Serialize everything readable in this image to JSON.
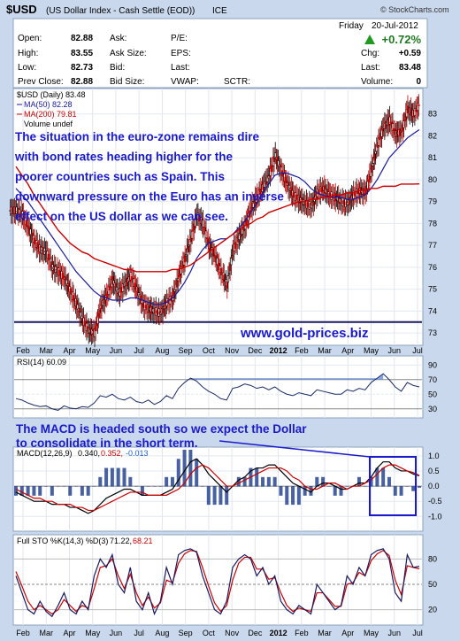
{
  "header": {
    "symbol": "$USD",
    "description": "(US Dollar Index - Cash Settle (EOD))",
    "exchange": "ICE",
    "brand": "© StockCharts.com",
    "day": "Friday",
    "date": "20-Jul-2012",
    "change_pct": "+0.72%"
  },
  "quote": {
    "open_label": "Open:",
    "open": "82.88",
    "high_label": "High:",
    "high": "83.55",
    "low_label": "Low:",
    "low": "82.73",
    "prev_label": "Prev Close:",
    "prev": "82.88",
    "ask_label": "Ask:",
    "ask": "",
    "asksize_label": "Ask Size:",
    "asksize": "",
    "bid_label": "Bid:",
    "bid": "",
    "bidsize_label": "Bid Size:",
    "bidsize": "",
    "pe_label": "P/E:",
    "eps_label": "EPS:",
    "last_label": "Last:",
    "vwap_label": "VWAP:",
    "sctr_label": "SCTR:",
    "chg_label": "Chg:",
    "chg": "+0.59",
    "last2_label": "Last:",
    "last2": "83.48",
    "volume_label": "Volume:",
    "volume": "0"
  },
  "legend": {
    "price": "$USD (Daily) 83.48",
    "ma50": "MA(50) 82.28",
    "ma200": "MA(200) 79.81",
    "volume": "Volume undef"
  },
  "annotations": {
    "main_text": "The situation in the euro-zone remains dire with bond rates heading higher for the poorer countries such as Spain. This downward pressure on the Euro has an inverse effect on the US dollar as we can see.",
    "site": "www.gold-prices.biz",
    "macd_text_1": "The MACD is headed south so we expect the Dollar",
    "macd_text_2": "to consolidate in the short term."
  },
  "rsi_legend": "RSI(14) 60.09",
  "macd_legend": {
    "label": "MACD(12,26,9)",
    "macd": "0.340,",
    "signal": "0.352,",
    "hist": "-0.013"
  },
  "sto_legend": {
    "label": "Full STO %K(14,3) %D(3)",
    "k": "71.22,",
    "d": "68.21"
  },
  "months": [
    "Feb",
    "Mar",
    "Apr",
    "May",
    "Jun",
    "Jul",
    "Aug",
    "Sep",
    "Oct",
    "Nov",
    "Dec",
    "2012",
    "Feb",
    "Mar",
    "Apr",
    "May",
    "Jun",
    "Jul"
  ],
  "colors": {
    "background": "#c9d8ec",
    "price_up": "#000000",
    "price_down": "#cc0000",
    "ma50": "#1a1aa0",
    "ma200": "#cc0000",
    "annotation": "#1a1acc",
    "rsi_fill": "#6a8fd8"
  },
  "chart_data": [
    {
      "type": "candlestick",
      "title": "$USD (Daily) 83.48",
      "y_ticks": [
        73,
        74,
        75,
        76,
        77,
        78,
        79,
        80,
        81,
        82,
        83
      ],
      "ylim": [
        72.6,
        84.0
      ],
      "x_ticks": [
        "Feb",
        "Mar",
        "Apr",
        "May",
        "Jun",
        "Jul",
        "Aug",
        "Sep",
        "Oct",
        "Nov",
        "Dec",
        "2012",
        "Feb",
        "Mar",
        "Apr",
        "May",
        "Jun",
        "Jul"
      ],
      "support_level": 73.5,
      "series": [
        {
          "name": "$USD",
          "values": [
            78.6,
            78.4,
            77.8,
            77.2,
            76.8,
            76.7,
            76.0,
            75.8,
            75.5,
            74.9,
            74.3,
            73.6,
            73.1,
            73.0,
            74.2,
            74.7,
            75.4,
            74.8,
            75.2,
            75.6,
            75.0,
            74.3,
            74.1,
            74.0,
            73.9,
            74.4,
            74.6,
            75.6,
            76.4,
            77.3,
            78.4,
            78.0,
            77.0,
            76.5,
            75.8,
            75.2,
            76.8,
            77.4,
            77.9,
            78.7,
            79.2,
            79.7,
            80.2,
            81.1,
            80.4,
            79.8,
            79.3,
            79.1,
            78.9,
            78.8,
            79.4,
            79.6,
            79.3,
            79.2,
            79.0,
            78.9,
            79.3,
            79.5,
            79.4,
            80.5,
            81.6,
            82.4,
            82.7,
            82.1,
            82.2,
            83.2,
            83.0,
            83.48
          ]
        },
        {
          "name": "MA(50) 82.28",
          "values": [
            79.6,
            79.3,
            79.0,
            78.6,
            78.2,
            77.8,
            77.4,
            77.0,
            76.6,
            76.2,
            75.8,
            75.5,
            75.2,
            74.9,
            74.7,
            74.6,
            74.5,
            74.5,
            74.5,
            74.6,
            74.6,
            74.5,
            74.4,
            74.3,
            74.3,
            74.4,
            74.6,
            74.9,
            75.3,
            75.8,
            76.4,
            76.8,
            77.1,
            77.2,
            77.3,
            77.3,
            77.5,
            77.8,
            78.1,
            78.5,
            78.9,
            79.4,
            79.8,
            80.2,
            80.3,
            80.3,
            80.2,
            80.1,
            79.9,
            79.6,
            79.4,
            79.3,
            79.2,
            79.2,
            79.2,
            79.1,
            79.1,
            79.2,
            79.3,
            79.6,
            80.0,
            80.5,
            81.0,
            81.3,
            81.6,
            81.9,
            82.1,
            82.28
          ]
        },
        {
          "name": "MA(200) 79.81",
          "values": [
            80.6,
            80.2,
            79.8,
            79.3,
            78.9,
            78.5,
            78.1,
            77.7,
            77.4,
            77.1,
            76.9,
            76.7,
            76.6,
            76.4,
            76.3,
            76.2,
            76.1,
            76.0,
            75.9,
            75.9,
            75.8,
            75.8,
            75.8,
            75.8,
            75.8,
            75.8,
            75.9,
            75.9,
            76.0,
            76.1,
            76.3,
            76.5,
            76.7,
            76.9,
            77.1,
            77.3,
            77.5,
            77.7,
            77.9,
            78.0,
            78.2,
            78.3,
            78.5,
            78.6,
            78.7,
            78.8,
            78.9,
            79.0,
            79.0,
            79.1,
            79.1,
            79.2,
            79.2,
            79.3,
            79.3,
            79.4,
            79.4,
            79.5,
            79.5,
            79.6,
            79.6,
            79.7,
            79.7,
            79.7,
            79.8,
            79.8,
            79.8,
            79.81
          ]
        }
      ]
    },
    {
      "type": "line",
      "title": "RSI(14) 60.09",
      "y_ticks": [
        30,
        50,
        70,
        90
      ],
      "ylim": [
        20,
        100
      ],
      "series": [
        {
          "name": "RSI(14)",
          "values": [
            44,
            42,
            38,
            35,
            33,
            34,
            30,
            28,
            34,
            31,
            30,
            33,
            32,
            38,
            48,
            46,
            50,
            44,
            42,
            46,
            40,
            38,
            42,
            36,
            40,
            48,
            44,
            58,
            66,
            72,
            68,
            60,
            54,
            50,
            44,
            42,
            58,
            60,
            64,
            62,
            58,
            60,
            56,
            60,
            54,
            50,
            48,
            52,
            50,
            48,
            56,
            54,
            52,
            50,
            50,
            56,
            54,
            58,
            56,
            66,
            72,
            78,
            70,
            60,
            54,
            66,
            62,
            60
          ]
        }
      ]
    },
    {
      "type": "line",
      "title": "MACD(12,26,9) 0.340, 0.352, -0.013",
      "y_ticks": [
        -1.0,
        -0.5,
        0.0,
        0.5,
        1.0
      ],
      "ylim": [
        -1.4,
        1.2
      ],
      "series": [
        {
          "name": "MACD",
          "values": [
            -0.2,
            -0.3,
            -0.4,
            -0.5,
            -0.5,
            -0.5,
            -0.6,
            -0.6,
            -0.6,
            -0.7,
            -0.7,
            -0.8,
            -0.9,
            -0.8,
            -0.6,
            -0.4,
            -0.3,
            -0.2,
            -0.1,
            -0.1,
            -0.2,
            -0.3,
            -0.3,
            -0.3,
            -0.3,
            -0.2,
            -0.1,
            0.2,
            0.5,
            0.8,
            0.9,
            0.7,
            0.4,
            0.2,
            0.0,
            -0.2,
            0.0,
            0.2,
            0.3,
            0.5,
            0.6,
            0.6,
            0.7,
            0.7,
            0.5,
            0.3,
            0.1,
            0.0,
            -0.1,
            -0.2,
            0.0,
            0.1,
            0.1,
            0.0,
            -0.1,
            -0.1,
            0.0,
            0.1,
            0.1,
            0.3,
            0.6,
            0.8,
            0.8,
            0.6,
            0.5,
            0.5,
            0.4,
            0.34
          ]
        },
        {
          "name": "Signal",
          "values": [
            -0.1,
            -0.2,
            -0.3,
            -0.4,
            -0.4,
            -0.5,
            -0.5,
            -0.6,
            -0.6,
            -0.6,
            -0.7,
            -0.7,
            -0.8,
            -0.8,
            -0.7,
            -0.6,
            -0.5,
            -0.4,
            -0.3,
            -0.2,
            -0.2,
            -0.2,
            -0.3,
            -0.3,
            -0.3,
            -0.3,
            -0.2,
            -0.1,
            0.1,
            0.4,
            0.6,
            0.7,
            0.6,
            0.4,
            0.2,
            0.0,
            0.0,
            0.1,
            0.2,
            0.3,
            0.4,
            0.5,
            0.6,
            0.6,
            0.6,
            0.5,
            0.3,
            0.2,
            0.0,
            -0.1,
            -0.1,
            0.0,
            0.1,
            0.1,
            0.0,
            -0.1,
            0.0,
            0.0,
            0.1,
            0.2,
            0.4,
            0.6,
            0.7,
            0.7,
            0.6,
            0.5,
            0.45,
            0.352
          ]
        }
      ]
    },
    {
      "type": "line",
      "title": "Full STO %K(14,3) %D(3) 71.22, 68.21",
      "y_ticks": [
        20,
        50,
        80
      ],
      "ylim": [
        5,
        95
      ],
      "series": [
        {
          "name": "%K",
          "values": [
            60,
            40,
            20,
            15,
            30,
            18,
            12,
            25,
            40,
            20,
            15,
            30,
            20,
            60,
            80,
            70,
            85,
            50,
            40,
            70,
            30,
            20,
            40,
            15,
            30,
            70,
            50,
            85,
            90,
            92,
            88,
            60,
            40,
            20,
            15,
            30,
            70,
            80,
            85,
            80,
            60,
            70,
            50,
            60,
            30,
            20,
            15,
            25,
            20,
            15,
            50,
            40,
            30,
            20,
            25,
            60,
            50,
            70,
            60,
            85,
            90,
            92,
            80,
            40,
            30,
            85,
            70,
            71.22
          ]
        },
        {
          "name": "%D",
          "values": [
            65,
            48,
            30,
            20,
            25,
            20,
            15,
            20,
            32,
            25,
            18,
            25,
            22,
            45,
            70,
            72,
            80,
            60,
            45,
            62,
            40,
            25,
            35,
            22,
            28,
            55,
            52,
            75,
            86,
            90,
            89,
            70,
            48,
            28,
            18,
            25,
            55,
            75,
            82,
            82,
            68,
            68,
            56,
            58,
            40,
            25,
            18,
            22,
            20,
            18,
            40,
            40,
            32,
            24,
            24,
            50,
            52,
            64,
            60,
            78,
            86,
            90,
            84,
            55,
            38,
            72,
            70,
            68.21
          ]
        }
      ]
    }
  ]
}
